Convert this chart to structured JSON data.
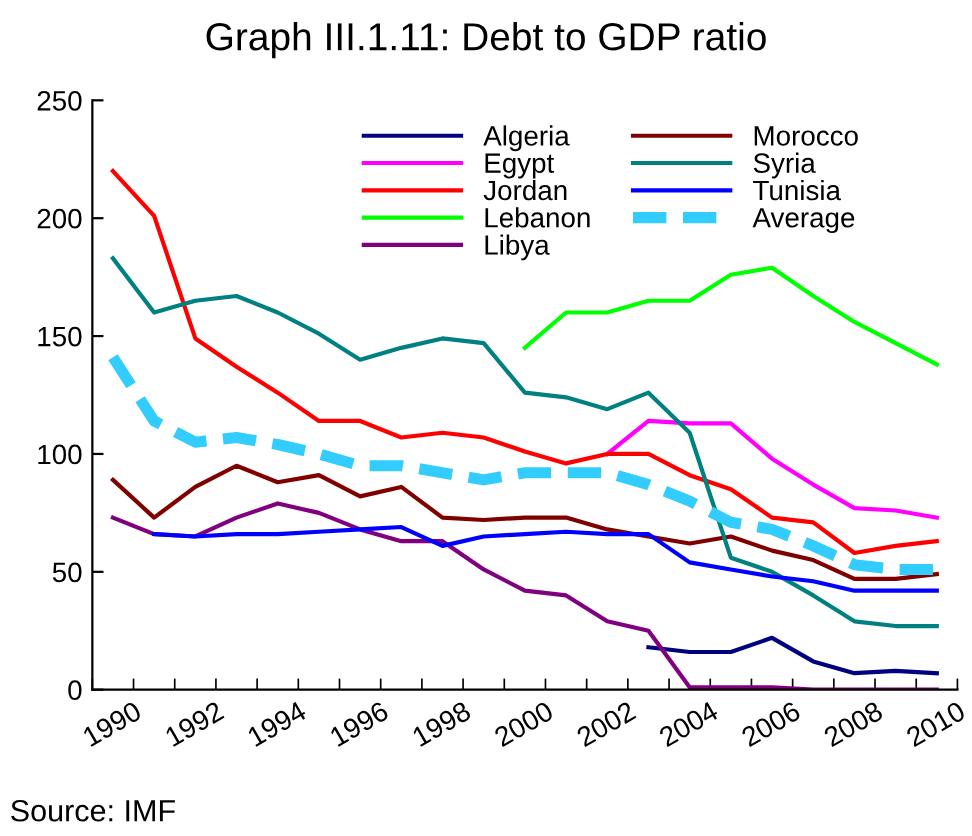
{
  "chart_data": {
    "type": "line",
    "title": "Graph III.1.11: Debt to GDP ratio",
    "categories": [
      "1990",
      null,
      "1992",
      null,
      "1994",
      null,
      "1996",
      null,
      "1998",
      null,
      "2000",
      null,
      "2002",
      null,
      "2004",
      null,
      "2006",
      null,
      "2008",
      null,
      "2010"
    ],
    "series": [
      {
        "name": "Algeria",
        "color": "#000080",
        "values": [
          null,
          null,
          null,
          null,
          null,
          null,
          null,
          null,
          null,
          null,
          null,
          null,
          null,
          18,
          16,
          16,
          22,
          12,
          7,
          8,
          7
        ]
      },
      {
        "name": "Egypt",
        "color": "#ff00ff",
        "values": [
          null,
          null,
          null,
          null,
          null,
          null,
          null,
          null,
          null,
          null,
          null,
          null,
          100,
          114,
          113,
          113,
          98,
          87,
          77,
          76,
          73
        ]
      },
      {
        "name": "Jordan",
        "color": "#ff0000",
        "values": [
          220,
          201,
          149,
          137,
          126,
          114,
          114,
          107,
          109,
          107,
          101,
          96,
          100,
          100,
          91,
          85,
          73,
          71,
          58,
          61,
          63
        ]
      },
      {
        "name": "Lebanon",
        "color": "#00ff00",
        "values": [
          null,
          null,
          null,
          null,
          null,
          null,
          null,
          null,
          null,
          null,
          145,
          160,
          160,
          165,
          165,
          176,
          179,
          167,
          156,
          147,
          138
        ]
      },
      {
        "name": "Libya",
        "color": "#800080",
        "values": [
          73,
          66,
          65,
          73,
          79,
          75,
          68,
          63,
          63,
          51,
          42,
          40,
          29,
          25,
          1,
          1,
          1,
          0,
          0,
          0,
          0
        ]
      },
      {
        "name": "Morocco",
        "color": "#800000",
        "values": [
          89,
          73,
          86,
          95,
          88,
          91,
          82,
          86,
          73,
          72,
          73,
          73,
          68,
          65,
          62,
          65,
          59,
          55,
          47,
          47,
          49
        ]
      },
      {
        "name": "Syria",
        "color": "#008080",
        "values": [
          183,
          160,
          165,
          167,
          160,
          151,
          140,
          145,
          149,
          147,
          126,
          124,
          119,
          126,
          109,
          56,
          50,
          40,
          29,
          27,
          27
        ]
      },
      {
        "name": "Tunisia",
        "color": "#0000ff",
        "values": [
          null,
          66,
          65,
          66,
          66,
          67,
          68,
          69,
          61,
          65,
          66,
          67,
          66,
          66,
          54,
          51,
          48,
          46,
          42,
          42,
          42
        ]
      },
      {
        "name": "Average",
        "color": "#33ccff",
        "line_style": "dashed",
        "values": [
          141,
          114,
          105,
          107,
          104,
          100,
          95,
          95,
          92,
          89,
          92,
          92,
          92,
          87,
          80,
          71,
          68,
          61,
          53,
          51,
          51
        ]
      }
    ],
    "ylim": [
      0,
      250
    ],
    "yticks": [
      0,
      50,
      100,
      150,
      200,
      250
    ],
    "grid": false,
    "legend": "top",
    "marker": "none",
    "line_style": "solid",
    "annotations": [
      "Source: IMF"
    ]
  }
}
